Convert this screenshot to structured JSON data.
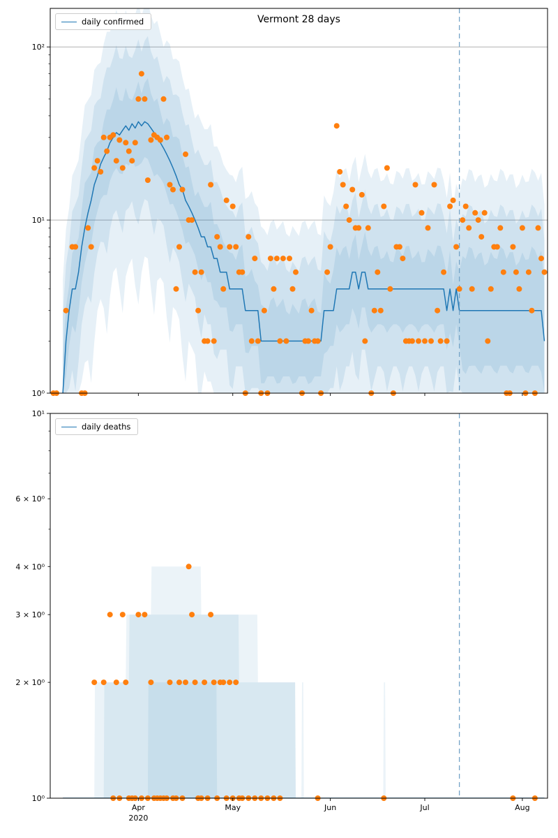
{
  "figure_title": "Vermont 28 days",
  "chart_data": [
    {
      "name": "daily-confirmed",
      "type": "line",
      "title": "Vermont 28 days",
      "legend_label": "daily confirmed",
      "legend_position": "upper-left",
      "x_domain": [
        3,
        161
      ],
      "x_ticks": [
        {
          "day": 31,
          "label": "Apr",
          "year": "2020"
        },
        {
          "day": 61,
          "label": "May"
        },
        {
          "day": 92,
          "label": "Jun"
        },
        {
          "day": 122,
          "label": "Jul"
        },
        {
          "day": 153,
          "label": "Aug"
        }
      ],
      "show_x_labels": false,
      "y_scale": "log",
      "y_max": 167,
      "y_ticks": [
        {
          "v": 1,
          "label": "10⁰",
          "major": true,
          "grid": false
        },
        {
          "v": 10,
          "label": "10¹",
          "major": true,
          "grid": true
        },
        {
          "v": 100,
          "label": "10²",
          "major": true,
          "grid": true
        }
      ],
      "vline_day": 133,
      "median": {
        "start_day": 7,
        "values": [
          1,
          2,
          3,
          4,
          4,
          5,
          7,
          9,
          11,
          13,
          16,
          18,
          21,
          23,
          25,
          28,
          30,
          32,
          31,
          33,
          35,
          33,
          36,
          34,
          37,
          35,
          37,
          36,
          34,
          32,
          30,
          28,
          26,
          24,
          22,
          20,
          18,
          16,
          15,
          13,
          12,
          11,
          10,
          9,
          8,
          8,
          7,
          7,
          6,
          6,
          5,
          5,
          5,
          4,
          4,
          4,
          4,
          4,
          3,
          3,
          3,
          3,
          3,
          2,
          2,
          2,
          2,
          2,
          2,
          2,
          2,
          2,
          2,
          2,
          2,
          2,
          2,
          2,
          2,
          2,
          2,
          2,
          2,
          3,
          3,
          3,
          3,
          4,
          4,
          4,
          4,
          4,
          5,
          5,
          4,
          5,
          5,
          4,
          4,
          4,
          4,
          4,
          4,
          4,
          4,
          4,
          4,
          4,
          4,
          4,
          4,
          4,
          4,
          4,
          4,
          4,
          4,
          4,
          4,
          4,
          4,
          4,
          3,
          4,
          3,
          4,
          3,
          3,
          3,
          3,
          3,
          3,
          3,
          3,
          3,
          3,
          3,
          3,
          3,
          3,
          3,
          3,
          3,
          3,
          3,
          3,
          3,
          3,
          3,
          3,
          3,
          3,
          3,
          2
        ]
      },
      "bands": {
        "mode": "factors",
        "inner": [
          1.6,
          1.6
        ],
        "mid": [
          2.8,
          2.8
        ],
        "outer": [
          6,
          4.5
        ],
        "forecast_widen": 1.3,
        "opacity": 0.11
      },
      "scatter": [
        [
          4,
          1
        ],
        [
          5,
          1
        ],
        [
          8,
          3
        ],
        [
          10,
          7
        ],
        [
          11,
          7
        ],
        [
          13,
          1
        ],
        [
          14,
          1
        ],
        [
          15,
          9
        ],
        [
          16,
          7
        ],
        [
          17,
          20
        ],
        [
          18,
          22
        ],
        [
          19,
          19
        ],
        [
          20,
          30
        ],
        [
          21,
          25
        ],
        [
          22,
          30
        ],
        [
          23,
          31
        ],
        [
          24,
          22
        ],
        [
          25,
          29
        ],
        [
          26,
          20
        ],
        [
          27,
          28
        ],
        [
          28,
          25
        ],
        [
          29,
          22
        ],
        [
          30,
          28
        ],
        [
          31,
          50
        ],
        [
          32,
          70
        ],
        [
          33,
          50
        ],
        [
          34,
          17
        ],
        [
          35,
          29
        ],
        [
          36,
          31
        ],
        [
          37,
          30
        ],
        [
          38,
          29
        ],
        [
          39,
          50
        ],
        [
          40,
          30
        ],
        [
          41,
          16
        ],
        [
          42,
          15
        ],
        [
          43,
          4
        ],
        [
          44,
          7
        ],
        [
          45,
          15
        ],
        [
          46,
          24
        ],
        [
          47,
          10
        ],
        [
          48,
          10
        ],
        [
          49,
          5
        ],
        [
          50,
          3
        ],
        [
          51,
          5
        ],
        [
          52,
          2
        ],
        [
          53,
          2
        ],
        [
          54,
          16
        ],
        [
          55,
          2
        ],
        [
          56,
          8
        ],
        [
          57,
          7
        ],
        [
          58,
          4
        ],
        [
          59,
          13
        ],
        [
          60,
          7
        ],
        [
          61,
          12
        ],
        [
          62,
          7
        ],
        [
          63,
          5
        ],
        [
          64,
          5
        ],
        [
          65,
          1
        ],
        [
          66,
          8
        ],
        [
          67,
          2
        ],
        [
          68,
          6
        ],
        [
          69,
          2
        ],
        [
          70,
          1
        ],
        [
          71,
          3
        ],
        [
          72,
          1
        ],
        [
          73,
          6
        ],
        [
          74,
          4
        ],
        [
          75,
          6
        ],
        [
          76,
          2
        ],
        [
          77,
          6
        ],
        [
          78,
          2
        ],
        [
          79,
          6
        ],
        [
          80,
          4
        ],
        [
          81,
          5
        ],
        [
          83,
          1
        ],
        [
          84,
          2
        ],
        [
          85,
          2
        ],
        [
          86,
          3
        ],
        [
          87,
          2
        ],
        [
          88,
          2
        ],
        [
          89,
          1
        ],
        [
          91,
          5
        ],
        [
          92,
          7
        ],
        [
          94,
          35
        ],
        [
          95,
          19
        ],
        [
          96,
          16
        ],
        [
          97,
          12
        ],
        [
          98,
          10
        ],
        [
          99,
          15
        ],
        [
          100,
          9
        ],
        [
          101,
          9
        ],
        [
          102,
          14
        ],
        [
          103,
          2
        ],
        [
          104,
          9
        ],
        [
          105,
          1
        ],
        [
          106,
          3
        ],
        [
          107,
          5
        ],
        [
          108,
          3
        ],
        [
          109,
          12
        ],
        [
          110,
          20
        ],
        [
          111,
          4
        ],
        [
          112,
          1
        ],
        [
          113,
          7
        ],
        [
          114,
          7
        ],
        [
          115,
          6
        ],
        [
          116,
          2
        ],
        [
          117,
          2
        ],
        [
          118,
          2
        ],
        [
          119,
          16
        ],
        [
          120,
          2
        ],
        [
          121,
          11
        ],
        [
          122,
          2
        ],
        [
          123,
          9
        ],
        [
          124,
          2
        ],
        [
          125,
          16
        ],
        [
          126,
          3
        ],
        [
          127,
          2
        ],
        [
          128,
          5
        ],
        [
          129,
          2
        ],
        [
          130,
          12
        ],
        [
          131,
          13
        ],
        [
          132,
          7
        ],
        [
          133,
          4
        ],
        [
          134,
          10
        ],
        [
          135,
          12
        ],
        [
          136,
          9
        ],
        [
          137,
          4
        ],
        [
          138,
          11
        ],
        [
          139,
          10
        ],
        [
          140,
          8
        ],
        [
          141,
          11
        ],
        [
          142,
          2
        ],
        [
          143,
          4
        ],
        [
          144,
          7
        ],
        [
          145,
          7
        ],
        [
          146,
          9
        ],
        [
          147,
          5
        ],
        [
          148,
          1
        ],
        [
          149,
          1
        ],
        [
          150,
          7
        ],
        [
          151,
          5
        ],
        [
          152,
          4
        ],
        [
          153,
          9
        ],
        [
          154,
          1
        ],
        [
          155,
          5
        ],
        [
          156,
          3
        ],
        [
          157,
          1
        ],
        [
          158,
          9
        ],
        [
          159,
          6
        ],
        [
          160,
          5
        ]
      ],
      "colors": {
        "line": "#1f77b4",
        "scatter": "#ff7f0e",
        "band": "#1f77b4",
        "vline": "#74a3c7",
        "grid": "#b0b0b0"
      }
    },
    {
      "name": "daily-deaths",
      "type": "line",
      "legend_label": "daily deaths",
      "legend_position": "upper-left",
      "x_domain": [
        3,
        161
      ],
      "x_ticks": [
        {
          "day": 31,
          "label": "Apr",
          "year": "2020"
        },
        {
          "day": 61,
          "label": "May"
        },
        {
          "day": 92,
          "label": "Jun"
        },
        {
          "day": 122,
          "label": "Jul"
        },
        {
          "day": 153,
          "label": "Aug"
        }
      ],
      "show_x_labels": true,
      "y_scale": "log",
      "y_max": 10,
      "y_ticks": [
        {
          "v": 1,
          "label": "10⁰",
          "major": true,
          "grid": false
        },
        {
          "v": 2,
          "label": "2 × 10⁰",
          "major": false,
          "grid": false
        },
        {
          "v": 3,
          "label": "3 × 10⁰",
          "major": false,
          "grid": false
        },
        {
          "v": 4,
          "label": "4 × 10⁰",
          "major": false,
          "grid": false
        },
        {
          "v": 6,
          "label": "6 × 10⁰",
          "major": false,
          "grid": false
        },
        {
          "v": 10,
          "label": "10¹",
          "major": true,
          "grid": false
        }
      ],
      "vline_day": 133,
      "median": {
        "start_day": 7,
        "end_day": 160,
        "const": 1
      },
      "bands": {
        "mode": "steps",
        "opacity": 0.09,
        "outer": [
          {
            "from": 17,
            "to": 81,
            "top": 2
          },
          {
            "from": 27,
            "to": 69,
            "top": 3
          },
          {
            "from": 35,
            "to": 51,
            "top": 4
          },
          {
            "from": 83,
            "to": 83.6,
            "top": 2
          },
          {
            "from": 109,
            "to": 109.6,
            "top": 2
          }
        ],
        "mid": [
          {
            "from": 20,
            "to": 81,
            "top": 2
          },
          {
            "from": 28,
            "to": 63,
            "top": 3
          }
        ],
        "inner": [
          {
            "from": 34,
            "to": 56,
            "top": 2
          }
        ]
      },
      "scatter": [
        [
          17,
          2
        ],
        [
          20,
          2
        ],
        [
          22,
          3
        ],
        [
          23,
          1
        ],
        [
          24,
          2
        ],
        [
          25,
          1
        ],
        [
          26,
          3
        ],
        [
          27,
          2
        ],
        [
          28,
          1
        ],
        [
          29,
          1
        ],
        [
          30,
          1
        ],
        [
          31,
          3
        ],
        [
          32,
          1
        ],
        [
          33,
          3
        ],
        [
          34,
          1
        ],
        [
          35,
          2
        ],
        [
          36,
          1
        ],
        [
          37,
          1
        ],
        [
          38,
          1
        ],
        [
          39,
          1
        ],
        [
          40,
          1
        ],
        [
          41,
          2
        ],
        [
          42,
          1
        ],
        [
          43,
          1
        ],
        [
          44,
          2
        ],
        [
          45,
          1
        ],
        [
          46,
          2
        ],
        [
          47,
          4
        ],
        [
          48,
          3
        ],
        [
          49,
          2
        ],
        [
          50,
          1
        ],
        [
          51,
          1
        ],
        [
          52,
          2
        ],
        [
          53,
          1
        ],
        [
          54,
          3
        ],
        [
          55,
          2
        ],
        [
          56,
          1
        ],
        [
          57,
          2
        ],
        [
          58,
          2
        ],
        [
          59,
          1
        ],
        [
          60,
          2
        ],
        [
          61,
          1
        ],
        [
          62,
          2
        ],
        [
          63,
          1
        ],
        [
          64,
          1
        ],
        [
          66,
          1
        ],
        [
          68,
          1
        ],
        [
          70,
          1
        ],
        [
          72,
          1
        ],
        [
          74,
          1
        ],
        [
          76,
          1
        ],
        [
          88,
          1
        ],
        [
          109,
          1
        ],
        [
          150,
          1
        ],
        [
          157,
          1
        ]
      ],
      "colors": {
        "line": "#1f77b4",
        "scatter": "#ff7f0e",
        "band": "#1f77b4",
        "vline": "#74a3c7",
        "grid": "#b0b0b0"
      }
    }
  ]
}
